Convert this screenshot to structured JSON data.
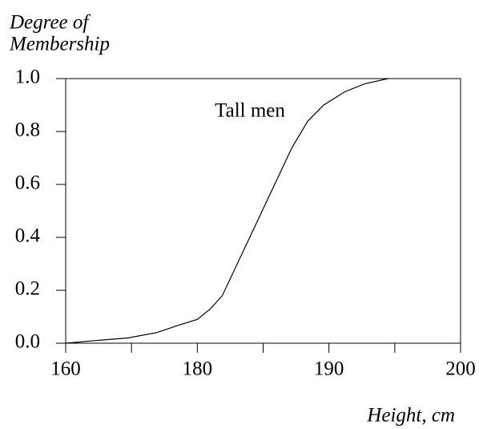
{
  "chart_data": {
    "type": "line",
    "ylabel": [
      "Degree of",
      "Membership"
    ],
    "xlabel": "Height, cm",
    "annotation": "Tall men",
    "x": [
      160,
      164.6,
      169.5,
      173.8,
      177.4,
      180,
      181.0,
      181.9,
      187.2,
      188.4,
      189.6,
      191.2,
      192.7,
      194.5
    ],
    "series": [
      {
        "name": "Tall men",
        "color": "#000000",
        "values": [
          0,
          0.01,
          0.02,
          0.04,
          0.07,
          0.09,
          0.13,
          0.18,
          0.74,
          0.84,
          0.9,
          0.95,
          0.98,
          1.0
        ]
      }
    ],
    "xlim": [
      160,
      200
    ],
    "xticks": [
      160,
      180,
      190,
      200
    ],
    "ylim": [
      0,
      1
    ],
    "yticks": [
      {
        "value": 0,
        "label": "0.0"
      },
      {
        "value": 0.2,
        "label": "0.2"
      },
      {
        "value": 0.4,
        "label": "0.4"
      },
      {
        "value": 0.6,
        "label": "0.6"
      },
      {
        "value": 0.8,
        "label": "0.8"
      },
      {
        "value": 1,
        "label": "1.0"
      }
    ],
    "grid": false
  }
}
